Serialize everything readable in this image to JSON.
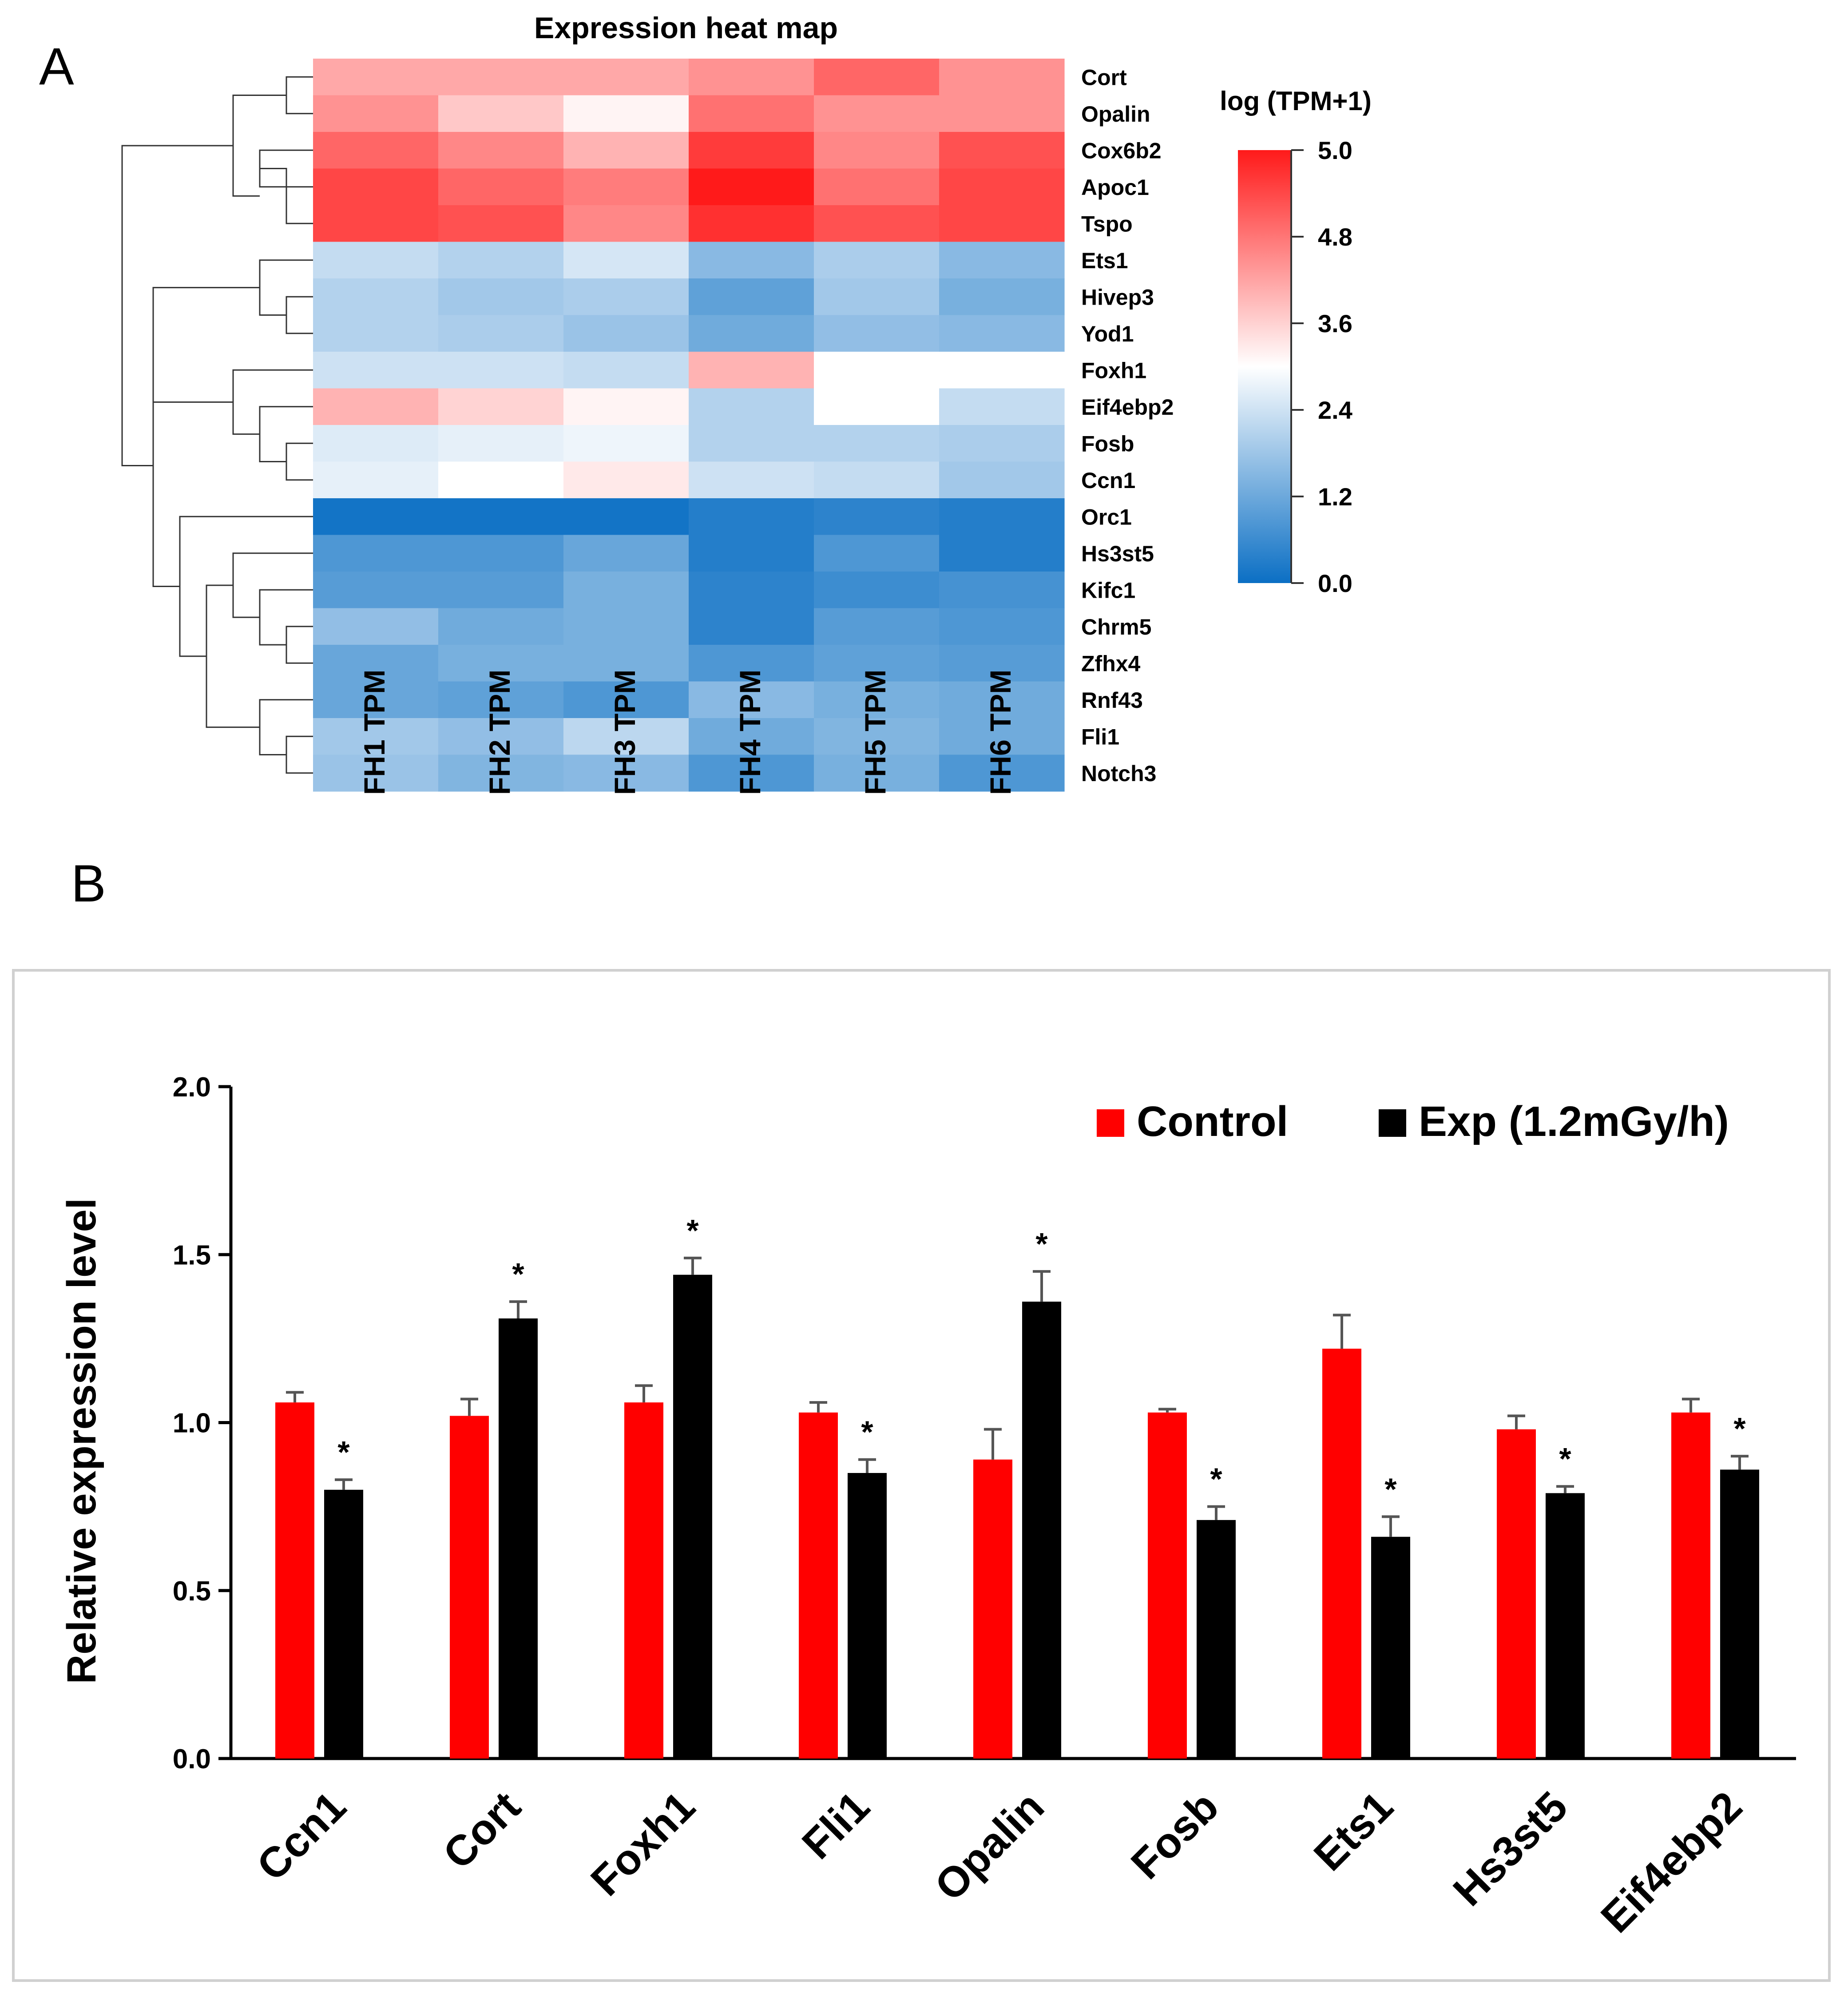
{
  "chart_data": [
    {
      "type": "heatmap",
      "panel_label": "A",
      "title": "Expression heat map",
      "columns": [
        "FH1 TPM",
        "FH2 TPM",
        "FH3 TPM",
        "FH4 TPM",
        "FH5 TPM",
        "FH6 TPM"
      ],
      "rows": [
        "Cort",
        "Opalin",
        "Cox6b2",
        "Apoc1",
        "Tspo",
        "Ets1",
        "Hivep3",
        "Yod1",
        "Foxh1",
        "Eif4ebp2",
        "Fosb",
        "Ccn1",
        "Orc1",
        "Hs3st5",
        "Kifc1",
        "Chrm5",
        "Zfhx4",
        "Rnf43",
        "Fli1",
        "Notch3"
      ],
      "values": [
        [
          3.7,
          3.7,
          3.7,
          3.9,
          4.3,
          3.9
        ],
        [
          3.9,
          3.4,
          3.0,
          4.2,
          3.9,
          3.9
        ],
        [
          4.3,
          4.0,
          3.6,
          4.7,
          4.0,
          4.5
        ],
        [
          4.6,
          4.3,
          4.1,
          5.0,
          4.2,
          4.6
        ],
        [
          4.6,
          4.5,
          4.0,
          4.8,
          4.5,
          4.6
        ],
        [
          2.2,
          2.0,
          2.4,
          1.5,
          1.9,
          1.5
        ],
        [
          2.0,
          1.8,
          1.9,
          1.0,
          1.8,
          1.3
        ],
        [
          2.0,
          1.9,
          1.7,
          1.2,
          1.6,
          1.5
        ],
        [
          2.3,
          2.3,
          2.2,
          3.6,
          2.9,
          2.9
        ],
        [
          3.6,
          3.3,
          3.0,
          2.0,
          2.9,
          2.2
        ],
        [
          2.5,
          2.6,
          2.7,
          2.0,
          2.0,
          1.9
        ],
        [
          2.6,
          2.9,
          3.1,
          2.3,
          2.2,
          1.8
        ],
        [
          0.1,
          0.1,
          0.1,
          0.3,
          0.4,
          0.3
        ],
        [
          0.8,
          0.8,
          1.1,
          0.3,
          0.8,
          0.3
        ],
        [
          0.9,
          0.9,
          1.3,
          0.4,
          0.6,
          0.7
        ],
        [
          1.6,
          1.2,
          1.3,
          0.4,
          0.9,
          0.8
        ],
        [
          1.1,
          1.3,
          1.3,
          0.8,
          1.0,
          0.9
        ],
        [
          1.1,
          1.0,
          0.8,
          1.5,
          1.3,
          1.2
        ],
        [
          1.8,
          1.6,
          2.1,
          1.2,
          1.4,
          1.2
        ],
        [
          1.7,
          1.4,
          1.5,
          0.8,
          1.3,
          0.8
        ]
      ],
      "colorbar": {
        "label": "log (TPM+1)",
        "ticks": [
          "5.0",
          "4.8",
          "3.6",
          "2.4",
          "1.2",
          "0.0"
        ],
        "colors": {
          "high": "#ff1a1a",
          "mid": "#ffffff",
          "low": "#0b6fc4"
        }
      }
    },
    {
      "type": "bar",
      "panel_label": "B",
      "ylabel": "Relative expression level",
      "xlabel": "",
      "ylim": [
        0,
        2.0
      ],
      "yticks": [
        "0.0",
        "0.5",
        "1.0",
        "1.5",
        "2.0"
      ],
      "categories": [
        "Ccn1",
        "Cort",
        "Foxh1",
        "Fli1",
        "Opalin",
        "Fosb",
        "Ets1",
        "Hs3st5",
        "Eif4ebp2"
      ],
      "series": [
        {
          "name": "Control",
          "color": "#ff0000",
          "values": [
            1.06,
            1.02,
            1.06,
            1.03,
            0.89,
            1.03,
            1.22,
            0.98,
            1.03
          ],
          "errors": [
            0.03,
            0.05,
            0.05,
            0.03,
            0.09,
            0.01,
            0.1,
            0.04,
            0.04
          ]
        },
        {
          "name": "Exp (1.2mGy/h)",
          "color": "#000000",
          "values": [
            0.8,
            1.31,
            1.44,
            0.85,
            1.36,
            0.71,
            0.66,
            0.79,
            0.86
          ],
          "errors": [
            0.03,
            0.05,
            0.05,
            0.04,
            0.09,
            0.04,
            0.06,
            0.02,
            0.04
          ]
        }
      ],
      "significance_mark": "*",
      "significance": [
        true,
        true,
        true,
        true,
        true,
        true,
        true,
        true,
        true
      ]
    }
  ]
}
